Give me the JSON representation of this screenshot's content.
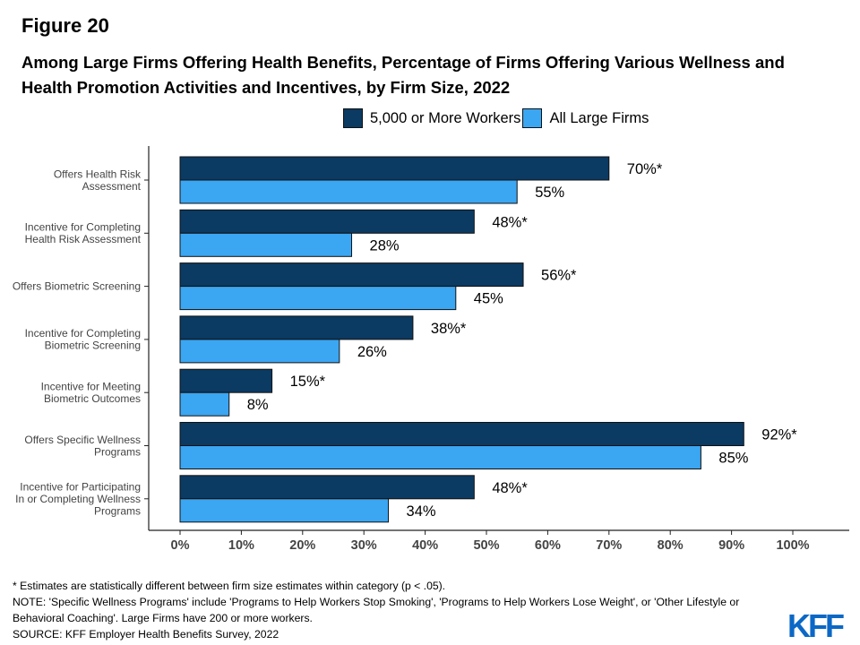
{
  "figure_label": "Figure 20",
  "title": "Among Large Firms Offering Health Benefits, Percentage of Firms Offering Various Wellness and Health Promotion Activities and Incentives, by Firm Size, 2022",
  "colors": {
    "series_large5000": "#0b3a62",
    "series_all": "#3ba6f2",
    "outline": "#111111"
  },
  "chart_data": {
    "type": "bar",
    "orientation": "horizontal",
    "categories": [
      [
        "Offers Health Risk",
        "Assessment"
      ],
      [
        "Incentive for Completing",
        "Health Risk Assessment"
      ],
      [
        "Offers Biometric Screening"
      ],
      [
        "Incentive for Completing",
        "Biometric Screening"
      ],
      [
        "Incentive for Meeting",
        "Biometric Outcomes"
      ],
      [
        "Offers Specific Wellness",
        "Programs"
      ],
      [
        "Incentive for Participating",
        "In or Completing Wellness",
        "Programs"
      ]
    ],
    "series": [
      {
        "name": "5,000 or More Workers",
        "values": [
          70,
          48,
          56,
          38,
          15,
          92,
          48
        ],
        "labels": [
          "70%*",
          "48%*",
          "56%*",
          "38%*",
          "15%*",
          "92%*",
          "48%*"
        ]
      },
      {
        "name": "All Large Firms",
        "values": [
          55,
          28,
          45,
          26,
          8,
          85,
          34
        ],
        "labels": [
          "55%",
          "28%",
          "45%",
          "26%",
          "8%",
          "85%",
          "34%"
        ]
      }
    ],
    "xlim": [
      0,
      100
    ],
    "xticks": [
      0,
      10,
      20,
      30,
      40,
      50,
      60,
      70,
      80,
      90,
      100
    ],
    "xtick_labels": [
      "0%",
      "10%",
      "20%",
      "30%",
      "40%",
      "50%",
      "60%",
      "70%",
      "80%",
      "90%",
      "100%"
    ],
    "legend_position": "top",
    "grid": false
  },
  "footnotes": [
    "* Estimates are statistically different between firm size estimates within category (p < .05).",
    "NOTE: 'Specific Wellness Programs' include 'Programs to Help Workers Stop Smoking', 'Programs to Help Workers Lose Weight', or 'Other Lifestyle or",
    "Behavioral Coaching'. Large Firms have 200 or more workers.",
    "SOURCE: KFF Employer Health Benefits Survey, 2022"
  ],
  "logo_text": "KFF"
}
